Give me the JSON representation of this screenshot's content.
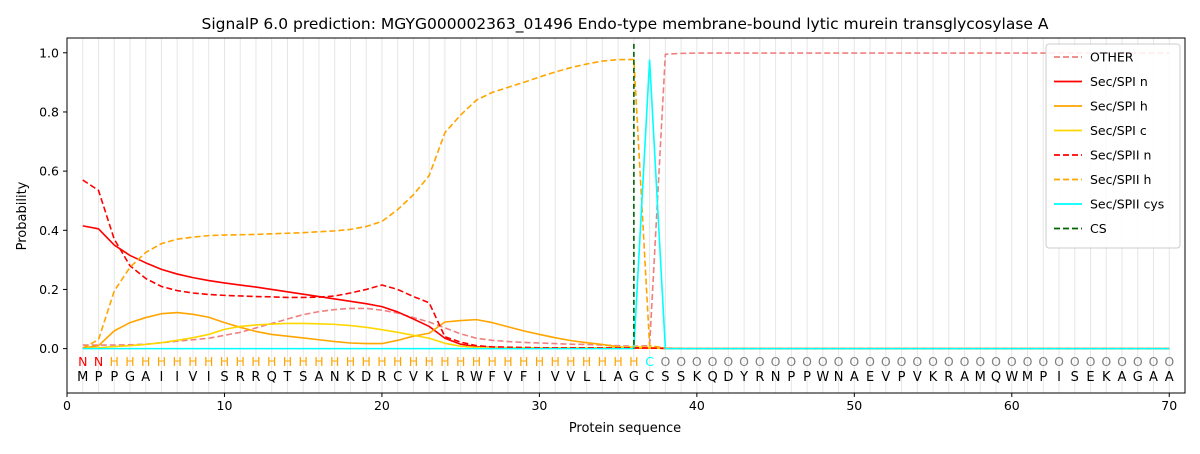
{
  "chart_data": {
    "type": "line",
    "title": "SignalP 6.0 prediction: MGYG000002363_01496 Endo-type membrane-bound lytic murein transglycosylase A",
    "xlabel": "Protein sequence",
    "ylabel": "Probability",
    "xlim": [
      0,
      71
    ],
    "ylim": [
      -0.15,
      1.05
    ],
    "xticks": [
      0,
      10,
      20,
      30,
      40,
      50,
      60,
      70
    ],
    "yticks": [
      0.0,
      0.2,
      0.4,
      0.6,
      0.8,
      1.0
    ],
    "grid": "vertical lines at each residue",
    "legend_position": "top-right",
    "sequence": [
      "M",
      "P",
      "P",
      "G",
      "A",
      "I",
      "I",
      "V",
      "I",
      "S",
      "R",
      "R",
      "Q",
      "T",
      "S",
      "A",
      "N",
      "K",
      "D",
      "R",
      "C",
      "V",
      "K",
      "L",
      "R",
      "W",
      "F",
      "V",
      "F",
      "I",
      "V",
      "V",
      "L",
      "L",
      "A",
      "G",
      "C",
      "S",
      "S",
      "K",
      "Q",
      "D",
      "Y",
      "R",
      "N",
      "P",
      "P",
      "W",
      "N",
      "A",
      "E",
      "V",
      "P",
      "V",
      "K",
      "R",
      "A",
      "M",
      "Q",
      "W",
      "M",
      "P",
      "I",
      "S",
      "E",
      "K",
      "A",
      "G",
      "A",
      "A"
    ],
    "region_labels": [
      "N",
      "N",
      "H",
      "H",
      "H",
      "H",
      "H",
      "H",
      "H",
      "H",
      "H",
      "H",
      "H",
      "H",
      "H",
      "H",
      "H",
      "H",
      "H",
      "H",
      "H",
      "H",
      "H",
      "H",
      "H",
      "H",
      "H",
      "H",
      "H",
      "H",
      "H",
      "H",
      "H",
      "H",
      "H",
      "H",
      "C",
      "O",
      "O",
      "O",
      "O",
      "O",
      "O",
      "O",
      "O",
      "O",
      "O",
      "O",
      "O",
      "O",
      "O",
      "O",
      "O",
      "O",
      "O",
      "O",
      "O",
      "O",
      "O",
      "O",
      "O",
      "O",
      "O",
      "O",
      "O",
      "O",
      "O",
      "O",
      "O",
      "O"
    ],
    "region_label_colors": {
      "N": "#ff0000",
      "H": "#ffa500",
      "C": "#00ffff",
      "O": "#808080"
    },
    "series": [
      {
        "name": "OTHER",
        "color": "#f08080",
        "dash": "dashed",
        "values": [
          0.012,
          0.012,
          0.012,
          0.013,
          0.015,
          0.02,
          0.025,
          0.03,
          0.035,
          0.045,
          0.055,
          0.07,
          0.085,
          0.1,
          0.115,
          0.125,
          0.132,
          0.136,
          0.136,
          0.13,
          0.12,
          0.105,
          0.09,
          0.07,
          0.05,
          0.035,
          0.028,
          0.024,
          0.021,
          0.019,
          0.017,
          0.015,
          0.014,
          0.012,
          0.01,
          0.008,
          0.01,
          0.995,
          0.998,
          0.999,
          0.999,
          0.999,
          0.999,
          0.999,
          0.999,
          0.999,
          0.999,
          0.999,
          0.999,
          0.999,
          0.999,
          0.999,
          0.999,
          0.999,
          0.999,
          0.999,
          0.999,
          0.999,
          0.999,
          0.999,
          0.999,
          0.999,
          0.999,
          0.999,
          0.999,
          0.999,
          0.999,
          0.999,
          0.999,
          0.999
        ]
      },
      {
        "name": "Sec/SPI n",
        "color": "#ff0000",
        "dash": "solid",
        "values": [
          0.415,
          0.405,
          0.35,
          0.315,
          0.29,
          0.268,
          0.252,
          0.24,
          0.23,
          0.222,
          0.215,
          0.208,
          0.2,
          0.192,
          0.184,
          0.176,
          0.168,
          0.16,
          0.152,
          0.142,
          0.124,
          0.1,
          0.075,
          0.035,
          0.015,
          0.006,
          0.004,
          0.003,
          0.003,
          0.002,
          0.002,
          0.002,
          0.002,
          0.002,
          0.002,
          0.002,
          0.002,
          0.001,
          0,
          0,
          0,
          0,
          0,
          0,
          0,
          0,
          0,
          0,
          0,
          0,
          0,
          0,
          0,
          0,
          0,
          0,
          0,
          0,
          0,
          0,
          0,
          0,
          0,
          0,
          0,
          0,
          0,
          0,
          0,
          0
        ]
      },
      {
        "name": "Sec/SPI h",
        "color": "#ffa500",
        "dash": "solid",
        "values": [
          0.002,
          0.01,
          0.06,
          0.088,
          0.105,
          0.118,
          0.122,
          0.116,
          0.106,
          0.088,
          0.072,
          0.058,
          0.048,
          0.042,
          0.036,
          0.03,
          0.024,
          0.019,
          0.017,
          0.017,
          0.028,
          0.042,
          0.052,
          0.09,
          0.095,
          0.098,
          0.088,
          0.074,
          0.06,
          0.048,
          0.037,
          0.027,
          0.02,
          0.014,
          0.006,
          0.003,
          0.002,
          0.001,
          0,
          0,
          0,
          0,
          0,
          0,
          0,
          0,
          0,
          0,
          0,
          0,
          0,
          0,
          0,
          0,
          0,
          0,
          0,
          0,
          0,
          0,
          0,
          0,
          0,
          0,
          0,
          0,
          0,
          0,
          0,
          0
        ]
      },
      {
        "name": "Sec/SPI c",
        "color": "#ffd700",
        "dash": "solid",
        "values": [
          0.001,
          0.003,
          0.007,
          0.01,
          0.014,
          0.02,
          0.028,
          0.037,
          0.048,
          0.065,
          0.075,
          0.08,
          0.083,
          0.085,
          0.085,
          0.084,
          0.082,
          0.078,
          0.072,
          0.064,
          0.055,
          0.045,
          0.035,
          0.018,
          0.008,
          0.004,
          0.003,
          0.003,
          0.003,
          0.003,
          0.003,
          0.003,
          0.003,
          0.003,
          0.004,
          0.006,
          0.004,
          0.001,
          0,
          0,
          0,
          0,
          0,
          0,
          0,
          0,
          0,
          0,
          0,
          0,
          0,
          0,
          0,
          0,
          0,
          0,
          0,
          0,
          0,
          0,
          0,
          0,
          0,
          0,
          0,
          0,
          0,
          0,
          0,
          0
        ]
      },
      {
        "name": "Sec/SPII n",
        "color": "#ff0000",
        "dash": "dashed",
        "values": [
          0.57,
          0.535,
          0.37,
          0.28,
          0.237,
          0.21,
          0.196,
          0.188,
          0.183,
          0.18,
          0.178,
          0.176,
          0.175,
          0.173,
          0.173,
          0.174,
          0.178,
          0.188,
          0.2,
          0.215,
          0.2,
          0.176,
          0.155,
          0.04,
          0.022,
          0.01,
          0.006,
          0.005,
          0.004,
          0.003,
          0.003,
          0.003,
          0.003,
          0.003,
          0.003,
          0.003,
          0.002,
          0.001,
          0,
          0,
          0,
          0,
          0,
          0,
          0,
          0,
          0,
          0,
          0,
          0,
          0,
          0,
          0,
          0,
          0,
          0,
          0,
          0,
          0,
          0,
          0,
          0,
          0,
          0,
          0,
          0,
          0,
          0,
          0,
          0
        ]
      },
      {
        "name": "Sec/SPII h",
        "color": "#ffa500",
        "dash": "dashed",
        "values": [
          0.002,
          0.03,
          0.195,
          0.275,
          0.325,
          0.355,
          0.37,
          0.377,
          0.382,
          0.384,
          0.385,
          0.386,
          0.388,
          0.39,
          0.392,
          0.395,
          0.398,
          0.403,
          0.413,
          0.43,
          0.47,
          0.52,
          0.585,
          0.73,
          0.79,
          0.84,
          0.866,
          0.883,
          0.9,
          0.918,
          0.935,
          0.95,
          0.962,
          0.972,
          0.977,
          0.977,
          0.01,
          0.002,
          0,
          0,
          0,
          0,
          0,
          0,
          0,
          0,
          0,
          0,
          0,
          0,
          0,
          0,
          0,
          0,
          0,
          0,
          0,
          0,
          0,
          0,
          0,
          0,
          0,
          0,
          0,
          0,
          0,
          0,
          0,
          0
        ]
      },
      {
        "name": "Sec/SPII cys",
        "color": "#00ffff",
        "dash": "solid",
        "values": [
          0,
          0,
          0,
          0,
          0,
          0,
          0,
          0,
          0,
          0,
          0,
          0,
          0,
          0,
          0,
          0,
          0,
          0,
          0,
          0,
          0,
          0,
          0,
          0,
          0,
          0,
          0,
          0,
          0,
          0,
          0,
          0,
          0,
          0,
          0,
          0,
          0.975,
          0,
          0,
          0,
          0,
          0,
          0,
          0,
          0,
          0,
          0,
          0,
          0,
          0,
          0,
          0,
          0,
          0,
          0,
          0,
          0,
          0,
          0,
          0,
          0,
          0,
          0,
          0,
          0,
          0,
          0,
          0,
          0,
          0
        ]
      }
    ],
    "cleavage_site": {
      "name": "CS",
      "x": 36,
      "color": "#006400"
    }
  }
}
